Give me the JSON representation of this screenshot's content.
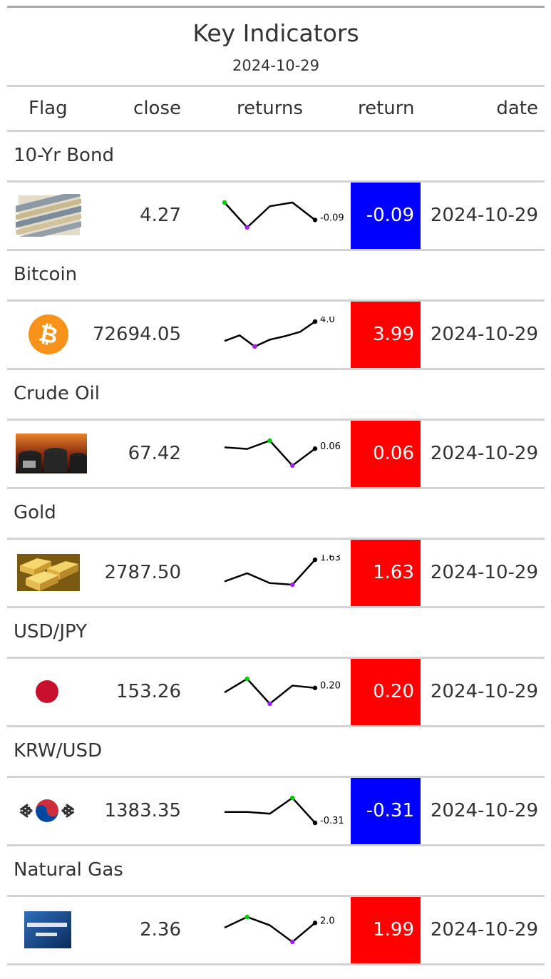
{
  "title": "Key Indicators",
  "subtitle": "2024-10-29",
  "columns": [
    "Flag",
    "close",
    "returns",
    "return",
    "date"
  ],
  "colors": {
    "positive": "#ff0000",
    "negative": "#0000ff",
    "spark_line": "#000000",
    "spark_high": "#00cc00",
    "spark_low": "#a020f0"
  },
  "rows": [
    {
      "group": "10-Yr Bond",
      "flag_icon": "bond-certificates-icon",
      "close": "4.27",
      "return": "-0.09",
      "date": "2024-10-29",
      "spark_label": "-0.09",
      "sign": "neg",
      "spark": [
        0.05,
        -0.15,
        0.02,
        0.05,
        -0.09
      ]
    },
    {
      "group": "Bitcoin",
      "flag_icon": "bitcoin-icon",
      "close": "72694.05",
      "return": "3.99",
      "date": "2024-10-29",
      "spark_label": "4.0",
      "sign": "pos",
      "spark": [
        -0.5,
        0.8,
        -1.8,
        -0.2,
        0.6,
        1.6,
        4.0
      ]
    },
    {
      "group": "Crude Oil",
      "flag_icon": "oil-barrels-icon",
      "close": "67.42",
      "return": "0.06",
      "date": "2024-10-29",
      "spark_label": "0.06",
      "sign": "pos",
      "spark": [
        0.3,
        0.0,
        1.5,
        -3.0,
        0.06
      ]
    },
    {
      "group": "Gold",
      "flag_icon": "gold-bars-icon",
      "close": "2787.50",
      "return": "1.63",
      "date": "2024-10-29",
      "spark_label": "1.63",
      "sign": "pos",
      "spark": [
        0.3,
        0.8,
        0.2,
        0.1,
        1.63
      ]
    },
    {
      "group": "USD/JPY",
      "flag_icon": "japan-flag-icon",
      "close": "153.26",
      "return": "0.20",
      "date": "2024-10-29",
      "spark_label": "0.20",
      "sign": "pos",
      "spark": [
        0.0,
        0.6,
        -0.5,
        0.3,
        0.2
      ]
    },
    {
      "group": "KRW/USD",
      "flag_icon": "korea-flag-icon",
      "close": "1383.35",
      "return": "-0.31",
      "date": "2024-10-29",
      "spark_label": "-0.31",
      "sign": "neg",
      "spark": [
        0.0,
        0.0,
        -0.05,
        0.4,
        -0.31
      ]
    },
    {
      "group": "Natural Gas",
      "flag_icon": "natural-gas-icon",
      "close": "2.36",
      "return": "1.99",
      "date": "2024-10-29",
      "spark_label": "2.0",
      "sign": "pos",
      "spark": [
        0.0,
        4.5,
        1.0,
        -6.0,
        2.0
      ]
    }
  ],
  "chart_data": {
    "type": "table",
    "title": "Key Indicators",
    "subtitle": "2024-10-29",
    "columns": [
      "Flag",
      "close",
      "returns",
      "return",
      "date"
    ],
    "series": [
      {
        "name": "10-Yr Bond",
        "close": 4.27,
        "return": -0.09,
        "date": "2024-10-29",
        "returns": [
          0.05,
          -0.15,
          0.02,
          0.05,
          -0.09
        ]
      },
      {
        "name": "Bitcoin",
        "close": 72694.05,
        "return": 3.99,
        "date": "2024-10-29",
        "returns": [
          -0.5,
          0.8,
          -1.8,
          -0.2,
          0.6,
          1.6,
          4.0
        ]
      },
      {
        "name": "Crude Oil",
        "close": 67.42,
        "return": 0.06,
        "date": "2024-10-29",
        "returns": [
          0.3,
          0.0,
          1.5,
          -3.0,
          0.06
        ]
      },
      {
        "name": "Gold",
        "close": 2787.5,
        "return": 1.63,
        "date": "2024-10-29",
        "returns": [
          0.3,
          0.8,
          0.2,
          0.1,
          1.63
        ]
      },
      {
        "name": "USD/JPY",
        "close": 153.26,
        "return": 0.2,
        "date": "2024-10-29",
        "returns": [
          0.0,
          0.6,
          -0.5,
          0.3,
          0.2
        ]
      },
      {
        "name": "KRW/USD",
        "close": 1383.35,
        "return": -0.31,
        "date": "2024-10-29",
        "returns": [
          0.0,
          0.0,
          -0.05,
          0.4,
          -0.31
        ]
      },
      {
        "name": "Natural Gas",
        "close": 2.36,
        "return": 1.99,
        "date": "2024-10-29",
        "returns": [
          0.0,
          4.5,
          1.0,
          -6.0,
          2.0
        ]
      }
    ]
  }
}
